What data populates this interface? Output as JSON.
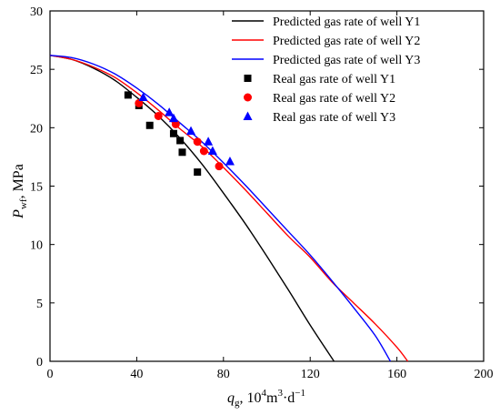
{
  "chart_data": {
    "type": "scatter",
    "xlabel_base": "q",
    "xlabel_sub": "g",
    "xlabel_rest": ", 10",
    "xlabel_sup": "4",
    "xlabel_unit": "m",
    "xlabel_unit_sup": "3",
    "xlabel_unit_tail": "·d",
    "xlabel_unit_tail_sup": "−1",
    "ylabel_base": "P",
    "ylabel_sub": "wf",
    "ylabel_rest": ", MPa",
    "xlim": [
      0,
      200
    ],
    "ylim": [
      0,
      30
    ],
    "x_ticks": [
      0,
      40,
      80,
      120,
      160,
      200
    ],
    "y_ticks": [
      0,
      5,
      10,
      15,
      20,
      25,
      30
    ],
    "x_tick_labels": [
      "0",
      "40",
      "80",
      "120",
      "160",
      "200"
    ],
    "y_tick_labels": [
      "0",
      "5",
      "10",
      "15",
      "20",
      "25",
      "30"
    ],
    "legend_position": "top-right",
    "grid": false,
    "curves": [
      {
        "name": "Predicted gas rate of well Y1",
        "color": "#000000",
        "points": [
          [
            0,
            26.2
          ],
          [
            10,
            25.85
          ],
          [
            20,
            25.1
          ],
          [
            30,
            24.05
          ],
          [
            40,
            22.6
          ],
          [
            50,
            21.0
          ],
          [
            60,
            19.1
          ],
          [
            70,
            16.9
          ],
          [
            80,
            14.4
          ],
          [
            90,
            11.8
          ],
          [
            100,
            9.0
          ],
          [
            110,
            6.1
          ],
          [
            120,
            3.1
          ],
          [
            131,
            0
          ]
        ]
      },
      {
        "name": "Predicted gas rate of well Y2",
        "color": "#ff0000",
        "points": [
          [
            0,
            26.2
          ],
          [
            10,
            25.85
          ],
          [
            20,
            25.2
          ],
          [
            30,
            24.3
          ],
          [
            40,
            23.0
          ],
          [
            50,
            21.5
          ],
          [
            60,
            19.9
          ],
          [
            70,
            18.4
          ],
          [
            80,
            16.6
          ],
          [
            90,
            14.7
          ],
          [
            100,
            12.7
          ],
          [
            110,
            10.7
          ],
          [
            120,
            8.9
          ],
          [
            130,
            6.8
          ],
          [
            140,
            5.0
          ],
          [
            150,
            3.2
          ],
          [
            160,
            1.2
          ],
          [
            165,
            0
          ]
        ]
      },
      {
        "name": "Predicted gas rate of well Y3",
        "color": "#0000ff",
        "points": [
          [
            0,
            26.2
          ],
          [
            10,
            26.0
          ],
          [
            20,
            25.45
          ],
          [
            30,
            24.6
          ],
          [
            40,
            23.4
          ],
          [
            50,
            22.0
          ],
          [
            60,
            20.4
          ],
          [
            70,
            18.8
          ],
          [
            80,
            17.0
          ],
          [
            90,
            15.1
          ],
          [
            100,
            13.1
          ],
          [
            110,
            11.1
          ],
          [
            120,
            9.1
          ],
          [
            130,
            6.9
          ],
          [
            140,
            4.6
          ],
          [
            150,
            2.2
          ],
          [
            157,
            0
          ]
        ]
      }
    ],
    "scatter": [
      {
        "name": "Real gas rate of well Y1",
        "color": "#000000",
        "marker": "square",
        "points": [
          [
            36,
            22.8
          ],
          [
            41,
            21.9
          ],
          [
            46,
            20.2
          ],
          [
            57,
            19.5
          ],
          [
            60,
            18.9
          ],
          [
            61,
            17.9
          ],
          [
            68,
            16.2
          ]
        ]
      },
      {
        "name": "Real gas rate of well Y2",
        "color": "#ff0000",
        "marker": "circle",
        "points": [
          [
            41,
            22.1
          ],
          [
            50,
            21.0
          ],
          [
            58,
            20.3
          ],
          [
            68,
            18.8
          ],
          [
            71,
            18.0
          ],
          [
            78,
            16.7
          ]
        ]
      },
      {
        "name": "Real gas rate of well Y3",
        "color": "#0000ff",
        "marker": "triangle",
        "points": [
          [
            43,
            22.6
          ],
          [
            55,
            21.3
          ],
          [
            57,
            20.8
          ],
          [
            65,
            19.7
          ],
          [
            73,
            18.8
          ],
          [
            75,
            18.0
          ],
          [
            83,
            17.1
          ]
        ]
      }
    ]
  }
}
